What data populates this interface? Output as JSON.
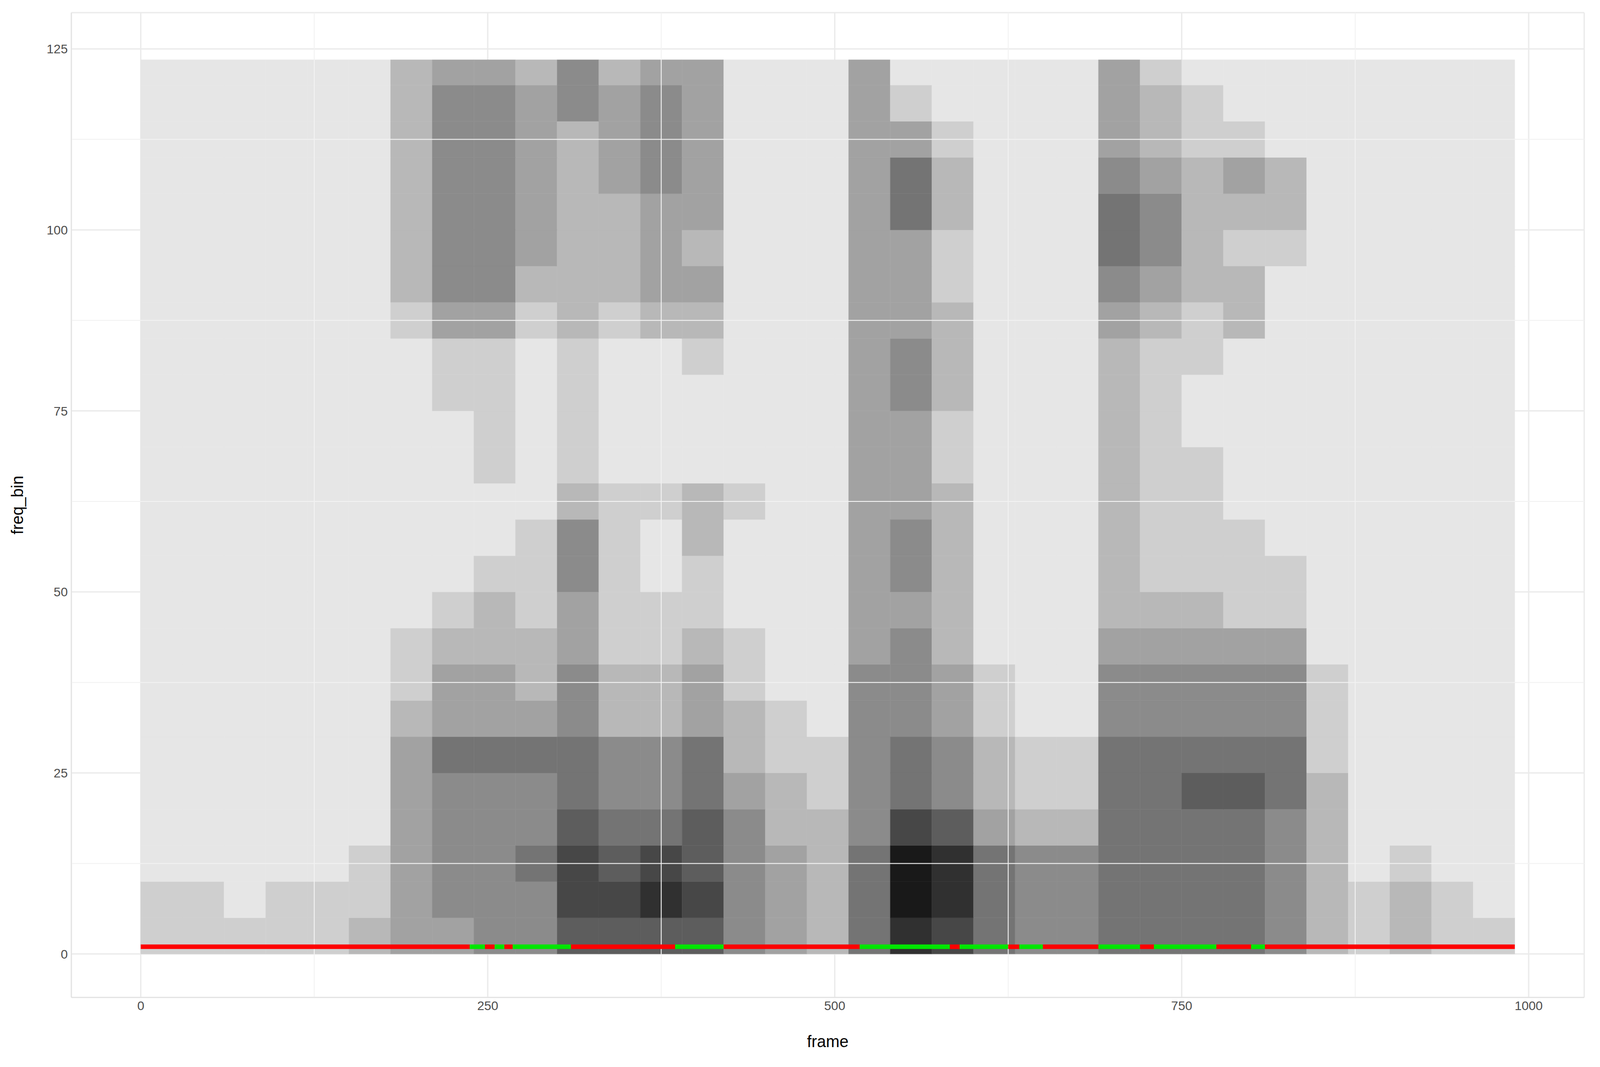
{
  "chart_data": {
    "type": "heatmap",
    "x_label": "frame",
    "y_label": "freq_bin",
    "xlim": [
      -50,
      1040
    ],
    "ylim": [
      -6,
      130
    ],
    "xticks": [
      0,
      250,
      500,
      750,
      1000
    ],
    "yticks": [
      0,
      25,
      50,
      75,
      100,
      125
    ],
    "grid": true,
    "heatmap": {
      "x_bins": [
        0,
        30,
        60,
        90,
        120,
        150,
        180,
        210,
        240,
        270,
        300,
        330,
        360,
        390,
        420,
        450,
        480,
        510,
        540,
        570,
        600,
        630,
        660,
        690,
        720,
        750,
        780,
        810,
        840,
        870,
        900,
        930,
        960,
        990
      ],
      "y_bins": [
        0,
        5,
        10,
        15,
        20,
        25,
        30,
        35,
        40,
        45,
        50,
        55,
        60,
        65,
        70,
        75,
        80,
        85,
        90,
        95,
        100,
        105,
        110,
        115,
        120,
        123.5
      ],
      "zlim": [
        0,
        9
      ],
      "cells": [
        [
          1,
          1,
          1,
          1,
          1,
          2,
          3,
          3,
          4,
          4,
          6,
          6,
          6,
          6,
          4,
          3,
          2,
          5,
          8,
          7,
          5,
          4,
          4,
          5,
          5,
          5,
          5,
          4,
          2,
          1,
          2,
          1,
          1
        ],
        [
          1,
          1,
          0,
          1,
          1,
          1,
          3,
          4,
          4,
          4,
          7,
          7,
          8,
          7,
          4,
          3,
          2,
          5,
          9,
          8,
          5,
          4,
          4,
          5,
          5,
          5,
          5,
          4,
          2,
          1,
          2,
          1,
          0
        ],
        [
          0,
          0,
          0,
          0,
          0,
          1,
          3,
          4,
          4,
          5,
          7,
          6,
          7,
          6,
          4,
          3,
          2,
          5,
          9,
          8,
          5,
          4,
          4,
          5,
          5,
          5,
          5,
          4,
          2,
          0,
          1,
          0,
          0
        ],
        [
          0,
          0,
          0,
          0,
          0,
          0,
          3,
          4,
          4,
          4,
          6,
          5,
          5,
          6,
          4,
          2,
          2,
          4,
          7,
          6,
          3,
          2,
          2,
          5,
          5,
          5,
          5,
          4,
          2,
          0,
          0,
          0,
          0
        ],
        [
          0,
          0,
          0,
          0,
          0,
          0,
          3,
          4,
          4,
          4,
          5,
          4,
          4,
          5,
          3,
          2,
          1,
          4,
          5,
          4,
          2,
          1,
          1,
          5,
          5,
          6,
          6,
          5,
          2,
          0,
          0,
          0,
          0
        ],
        [
          0,
          0,
          0,
          0,
          0,
          0,
          3,
          5,
          5,
          5,
          5,
          4,
          4,
          5,
          2,
          1,
          1,
          4,
          5,
          4,
          2,
          1,
          1,
          5,
          5,
          5,
          5,
          5,
          1,
          0,
          0,
          0,
          0
        ],
        [
          0,
          0,
          0,
          0,
          0,
          0,
          2,
          3,
          3,
          3,
          4,
          2,
          2,
          3,
          2,
          1,
          0,
          4,
          4,
          3,
          1,
          0,
          0,
          4,
          4,
          4,
          4,
          4,
          1,
          0,
          0,
          0,
          0
        ],
        [
          0,
          0,
          0,
          0,
          0,
          0,
          1,
          3,
          3,
          2,
          4,
          2,
          2,
          3,
          1,
          0,
          0,
          4,
          4,
          3,
          1,
          0,
          0,
          4,
          4,
          4,
          4,
          4,
          1,
          0,
          0,
          0,
          0
        ],
        [
          0,
          0,
          0,
          0,
          0,
          0,
          1,
          2,
          2,
          2,
          3,
          1,
          1,
          2,
          1,
          0,
          0,
          3,
          4,
          2,
          0,
          0,
          0,
          3,
          3,
          3,
          3,
          3,
          0,
          0,
          0,
          0,
          0
        ],
        [
          0,
          0,
          0,
          0,
          0,
          0,
          0,
          1,
          2,
          1,
          3,
          1,
          1,
          1,
          0,
          0,
          0,
          3,
          3,
          2,
          0,
          0,
          0,
          2,
          2,
          2,
          1,
          1,
          0,
          0,
          0,
          0,
          0
        ],
        [
          0,
          0,
          0,
          0,
          0,
          0,
          0,
          0,
          1,
          1,
          4,
          1,
          0,
          1,
          0,
          0,
          0,
          3,
          4,
          2,
          0,
          0,
          0,
          2,
          1,
          1,
          1,
          1,
          0,
          0,
          0,
          0,
          0
        ],
        [
          0,
          0,
          0,
          0,
          0,
          0,
          0,
          0,
          0,
          1,
          4,
          1,
          0,
          2,
          0,
          0,
          0,
          3,
          4,
          2,
          0,
          0,
          0,
          2,
          1,
          1,
          1,
          0,
          0,
          0,
          0,
          0,
          0
        ],
        [
          0,
          0,
          0,
          0,
          0,
          0,
          0,
          0,
          0,
          0,
          2,
          1,
          1,
          2,
          1,
          0,
          0,
          3,
          3,
          2,
          0,
          0,
          0,
          2,
          1,
          1,
          0,
          0,
          0,
          0,
          0,
          0,
          0
        ],
        [
          0,
          0,
          0,
          0,
          0,
          0,
          0,
          0,
          1,
          0,
          1,
          0,
          0,
          0,
          0,
          0,
          0,
          3,
          3,
          1,
          0,
          0,
          0,
          2,
          1,
          1,
          0,
          0,
          0,
          0,
          0,
          0,
          0
        ],
        [
          0,
          0,
          0,
          0,
          0,
          0,
          0,
          0,
          1,
          0,
          1,
          0,
          0,
          0,
          0,
          0,
          0,
          3,
          3,
          1,
          0,
          0,
          0,
          2,
          1,
          0,
          0,
          0,
          0,
          0,
          0,
          0,
          0
        ],
        [
          0,
          0,
          0,
          0,
          0,
          0,
          0,
          1,
          1,
          0,
          1,
          0,
          0,
          0,
          0,
          0,
          0,
          3,
          4,
          2,
          0,
          0,
          0,
          2,
          1,
          0,
          0,
          0,
          0,
          0,
          0,
          0,
          0
        ],
        [
          0,
          0,
          0,
          0,
          0,
          0,
          0,
          1,
          1,
          0,
          1,
          0,
          0,
          1,
          0,
          0,
          0,
          3,
          4,
          2,
          0,
          0,
          0,
          2,
          1,
          1,
          0,
          0,
          0,
          0,
          0,
          0,
          0
        ],
        [
          0,
          0,
          0,
          0,
          0,
          0,
          1,
          3,
          3,
          1,
          2,
          1,
          2,
          2,
          0,
          0,
          0,
          3,
          3,
          2,
          0,
          0,
          0,
          3,
          2,
          1,
          2,
          0,
          0,
          0,
          0,
          0,
          0
        ],
        [
          0,
          0,
          0,
          0,
          0,
          0,
          2,
          4,
          4,
          2,
          2,
          2,
          3,
          3,
          0,
          0,
          0,
          3,
          3,
          1,
          0,
          0,
          0,
          4,
          3,
          2,
          2,
          0,
          0,
          0,
          0,
          0,
          0
        ],
        [
          0,
          0,
          0,
          0,
          0,
          0,
          2,
          4,
          4,
          3,
          2,
          2,
          3,
          2,
          0,
          0,
          0,
          3,
          3,
          1,
          0,
          0,
          0,
          5,
          4,
          2,
          1,
          1,
          0,
          0,
          0,
          0,
          0
        ],
        [
          0,
          0,
          0,
          0,
          0,
          0,
          2,
          4,
          4,
          3,
          2,
          2,
          3,
          3,
          0,
          0,
          0,
          3,
          5,
          2,
          0,
          0,
          0,
          5,
          4,
          2,
          2,
          2,
          0,
          0,
          0,
          0,
          0
        ],
        [
          0,
          0,
          0,
          0,
          0,
          0,
          2,
          4,
          4,
          3,
          2,
          3,
          4,
          3,
          0,
          0,
          0,
          3,
          5,
          2,
          0,
          0,
          0,
          4,
          3,
          2,
          3,
          2,
          0,
          0,
          0,
          0,
          0
        ],
        [
          0,
          0,
          0,
          0,
          0,
          0,
          2,
          4,
          4,
          3,
          2,
          3,
          4,
          3,
          0,
          0,
          0,
          3,
          3,
          1,
          0,
          0,
          0,
          3,
          2,
          1,
          1,
          0,
          0,
          0,
          0,
          0,
          0
        ],
        [
          0,
          0,
          0,
          0,
          0,
          0,
          2,
          4,
          4,
          3,
          4,
          3,
          4,
          3,
          0,
          0,
          0,
          3,
          1,
          0,
          0,
          0,
          0,
          3,
          2,
          1,
          0,
          0,
          0,
          0,
          0,
          0,
          0
        ],
        [
          0,
          0,
          0,
          0,
          0,
          0,
          2,
          3,
          3,
          2,
          4,
          2,
          3,
          3,
          0,
          0,
          0,
          3,
          0,
          0,
          0,
          0,
          0,
          3,
          1,
          0,
          0,
          0,
          0,
          0,
          0,
          0,
          0
        ]
      ]
    },
    "line": {
      "y": 1,
      "breaks": [
        0,
        237,
        248,
        255,
        262,
        268,
        310,
        385,
        420,
        518,
        583,
        590,
        625,
        633,
        650,
        690,
        720,
        730,
        775,
        800,
        810,
        990
      ],
      "colors": [
        "#ff0000",
        "#00e600",
        "#ff0000",
        "#00e600",
        "#ff0000",
        "#00e600",
        "#ff0000",
        "#00e600",
        "#ff0000",
        "#00e600",
        "#ff0000",
        "#00e600",
        "#ff0000",
        "#00e600",
        "#ff0000",
        "#00e600",
        "#ff0000",
        "#00e600",
        "#ff0000",
        "#00e600",
        "#ff0000"
      ]
    }
  }
}
